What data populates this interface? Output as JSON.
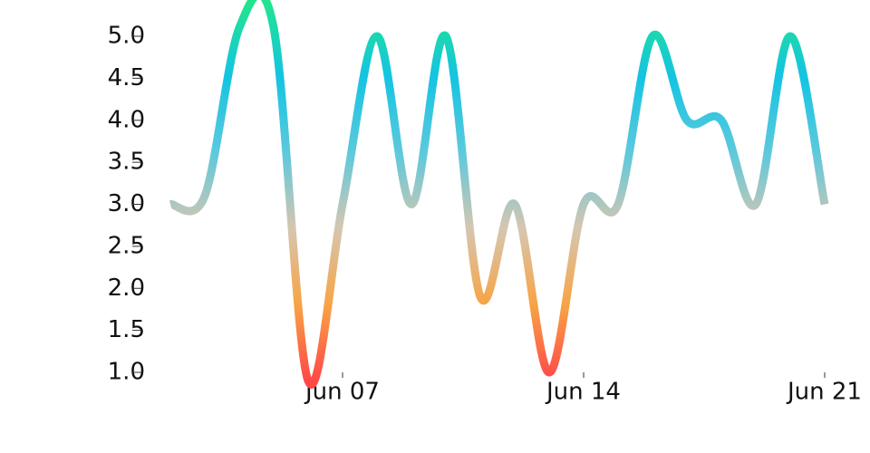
{
  "chart_data": {
    "type": "line",
    "x": [
      "Jun 02",
      "Jun 03",
      "Jun 04",
      "Jun 05",
      "Jun 06",
      "Jun 07",
      "Jun 08",
      "Jun 09",
      "Jun 10",
      "Jun 11",
      "Jun 12",
      "Jun 13",
      "Jun 14",
      "Jun 15",
      "Jun 16",
      "Jun 17",
      "Jun 18",
      "Jun 19",
      "Jun 20",
      "Jun 21"
    ],
    "values": [
      3.0,
      3.1,
      5.1,
      5.1,
      0.9,
      3.0,
      5.0,
      3.0,
      5.0,
      1.9,
      3.0,
      1.0,
      3.0,
      3.0,
      5.0,
      4.0,
      4.0,
      3.0,
      5.0,
      3.0
    ],
    "xticks": [
      "Jun 07",
      "Jun 14",
      "Jun 21"
    ],
    "ylim": [
      1.0,
      5.0
    ],
    "yticks": [
      {
        "value": 1,
        "label": "1.0"
      },
      1.5,
      {
        "value": 2,
        "label": "2.0"
      },
      2.5,
      {
        "value": 3,
        "label": "3.0"
      },
      3.5,
      {
        "value": 4,
        "label": "4.0"
      },
      4.5,
      {
        "value": 5,
        "label": "5.0"
      }
    ],
    "colors": [
      "#ff4848",
      "#f7a445",
      "#d6c6b0",
      "#5cc9dc",
      "#14c4e2",
      "#22e68a"
    ]
  }
}
